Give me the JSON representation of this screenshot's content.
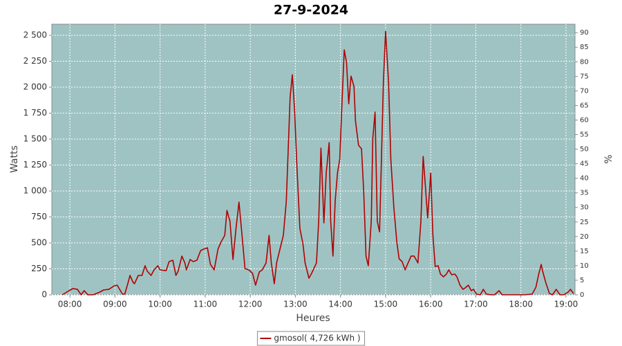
{
  "chart_data": {
    "type": "line",
    "title": "27-9-2024",
    "x_label": "Heures",
    "y_label": "Watts",
    "y2_label": "%",
    "x": [
      "07:50",
      "07:59",
      "08:04",
      "08:10",
      "08:15",
      "08:19",
      "08:24",
      "08:31",
      "08:40",
      "08:45",
      "08:52",
      "08:59",
      "09:03",
      "09:10",
      "09:13",
      "09:17",
      "09:20",
      "09:24",
      "09:26",
      "09:31",
      "09:36",
      "09:40",
      "09:43",
      "09:48",
      "09:52",
      "09:57",
      "10:00",
      "10:08",
      "10:12",
      "10:17",
      "10:21",
      "10:24",
      "10:29",
      "10:33",
      "10:35",
      "10:40",
      "10:44",
      "10:49",
      "10:54",
      "10:58",
      "11:03",
      "11:07",
      "11:12",
      "11:17",
      "11:21",
      "11:26",
      "11:29",
      "11:33",
      "11:37",
      "11:41",
      "11:45",
      "11:49",
      "11:53",
      "11:58",
      "12:03",
      "12:07",
      "12:12",
      "12:16",
      "12:21",
      "12:25",
      "12:28",
      "12:32",
      "12:35",
      "12:39",
      "12:44",
      "12:48",
      "12:53",
      "12:56",
      "12:59",
      "13:02",
      "13:06",
      "13:10",
      "13:13",
      "13:18",
      "13:22",
      "13:28",
      "13:31",
      "13:34",
      "13:38",
      "13:41",
      "13:45",
      "13:47",
      "13:50",
      "13:53",
      "13:56",
      "13:59",
      "14:02",
      "14:05",
      "14:08",
      "14:11",
      "14:14",
      "14:18",
      "14:20",
      "14:24",
      "14:28",
      "14:31",
      "14:34",
      "14:37",
      "14:41",
      "14:43",
      "14:46",
      "14:49",
      "14:52",
      "14:54",
      "14:57",
      "15:00",
      "15:04",
      "15:07",
      "15:11",
      "15:15",
      "15:18",
      "15:22",
      "15:26",
      "15:29",
      "15:34",
      "15:38",
      "15:43",
      "15:47",
      "15:50",
      "15:53",
      "15:56",
      "16:00",
      "16:03",
      "16:06",
      "16:10",
      "16:13",
      "16:17",
      "16:21",
      "16:24",
      "16:28",
      "16:32",
      "16:35",
      "16:39",
      "16:43",
      "16:46",
      "16:50",
      "16:54",
      "16:57",
      "17:01",
      "17:06",
      "17:10",
      "17:14",
      "17:20",
      "17:25",
      "17:31",
      "17:35",
      "17:43",
      "17:52",
      "18:05",
      "18:15",
      "18:20",
      "18:24",
      "18:27",
      "18:29",
      "18:33",
      "18:38",
      "18:42",
      "18:47",
      "18:52",
      "18:57",
      "19:03",
      "19:06",
      "19:10"
    ],
    "series": [
      {
        "name": "gmosol( 4,726 kWh )",
        "color": "#b00000",
        "values": [
          0,
          40,
          60,
          53,
          0,
          40,
          0,
          0,
          27,
          47,
          53,
          87,
          93,
          7,
          7,
          107,
          187,
          120,
          107,
          187,
          187,
          280,
          227,
          187,
          240,
          280,
          240,
          233,
          320,
          333,
          187,
          227,
          373,
          307,
          240,
          340,
          320,
          333,
          427,
          440,
          453,
          293,
          240,
          440,
          507,
          573,
          813,
          707,
          340,
          640,
          893,
          573,
          253,
          240,
          207,
          93,
          220,
          240,
          307,
          573,
          307,
          107,
          307,
          427,
          573,
          907,
          1907,
          2120,
          1773,
          1240,
          640,
          493,
          307,
          160,
          213,
          307,
          707,
          1413,
          693,
          1173,
          1467,
          707,
          373,
          907,
          1173,
          1307,
          1840,
          2360,
          2240,
          1840,
          2107,
          2007,
          1673,
          1440,
          1407,
          973,
          373,
          280,
          707,
          1507,
          1760,
          707,
          607,
          1173,
          2040,
          2540,
          2040,
          1307,
          840,
          507,
          347,
          320,
          240,
          293,
          373,
          373,
          307,
          707,
          1333,
          1040,
          740,
          1173,
          573,
          273,
          280,
          200,
          173,
          200,
          240,
          193,
          200,
          173,
          93,
          53,
          67,
          93,
          40,
          53,
          7,
          0,
          53,
          7,
          0,
          0,
          40,
          0,
          0,
          0,
          0,
          7,
          73,
          207,
          293,
          227,
          120,
          13,
          0,
          53,
          0,
          0,
          27,
          53,
          13
        ]
      }
    ],
    "xlim": [
      "07:36",
      "19:12"
    ],
    "xticks": [
      "08:00",
      "09:00",
      "10:00",
      "11:00",
      "12:00",
      "13:00",
      "14:00",
      "15:00",
      "16:00",
      "17:00",
      "18:00",
      "19:00"
    ],
    "ylim": [
      0,
      2607
    ],
    "yticks": [
      0,
      250,
      500,
      750,
      {
        "value": 1000,
        "label": "1 000"
      },
      {
        "value": 1250,
        "label": "1 250"
      },
      {
        "value": 1500,
        "label": "1 500"
      },
      {
        "value": 1750,
        "label": "1 750"
      },
      {
        "value": 2000,
        "label": "2 000"
      },
      {
        "value": 2250,
        "label": "2 250"
      },
      {
        "value": 2500,
        "label": "2 500"
      }
    ],
    "y2lim": [
      0,
      92.9
    ],
    "y2ticks": [
      0,
      5,
      10,
      15,
      20,
      25,
      30,
      35,
      40,
      45,
      50,
      55,
      60,
      65,
      70,
      75,
      80,
      85,
      90
    ],
    "grid": true,
    "background": "#9fc3c3",
    "legend": "bottom"
  }
}
